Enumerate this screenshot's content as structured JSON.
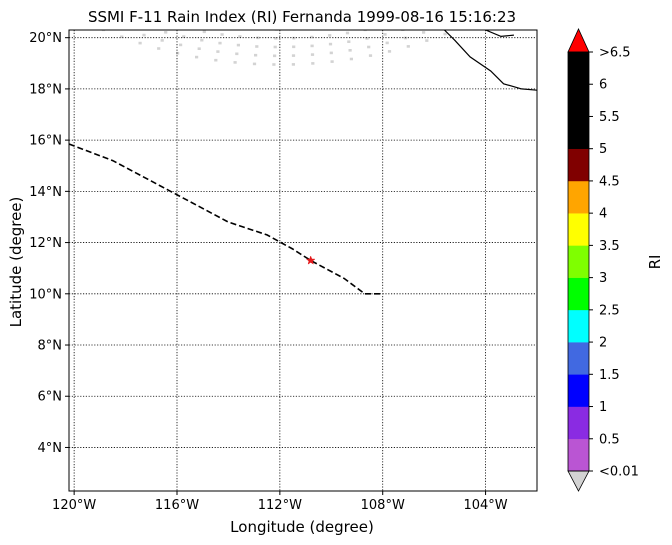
{
  "title": "SSMI F-11 Rain Index (RI) Fernanda 1999-08-16 15:16:23",
  "axes": {
    "xlabel": "Longitude (degree)",
    "ylabel": "Latitude (degree)",
    "x_ticks": [
      {
        "value": -120,
        "label": "120°W"
      },
      {
        "value": -116,
        "label": "116°W"
      },
      {
        "value": -112,
        "label": "112°W"
      },
      {
        "value": -108,
        "label": "108°W"
      },
      {
        "value": -104,
        "label": "104°W"
      }
    ],
    "y_ticks": [
      {
        "value": 4,
        "label": "4°N"
      },
      {
        "value": 6,
        "label": "6°N"
      },
      {
        "value": 8,
        "label": "8°N"
      },
      {
        "value": 10,
        "label": "10°N"
      },
      {
        "value": 12,
        "label": "12°N"
      },
      {
        "value": 14,
        "label": "14°N"
      },
      {
        "value": 16,
        "label": "16°N"
      },
      {
        "value": 18,
        "label": "18°N"
      },
      {
        "value": 20,
        "label": "20°N"
      }
    ],
    "xlim": [
      -120.2,
      -102
    ],
    "ylim": [
      2.3,
      20.3
    ]
  },
  "map": {
    "track": [
      [
        -120.2,
        15.85
      ],
      [
        -118.5,
        15.2
      ],
      [
        -117,
        14.4
      ],
      [
        -115.5,
        13.6
      ],
      [
        -114,
        12.8
      ],
      [
        -112.5,
        12.3
      ],
      [
        -111.5,
        11.75
      ],
      [
        -110.8,
        11.3
      ],
      [
        -109.5,
        10.6
      ],
      [
        -108.7,
        10.0
      ],
      [
        -108.0,
        10.0
      ]
    ],
    "storm_position": [
      -110.8,
      11.3
    ],
    "storm_color": "#e41a1c",
    "track_color": "#000000",
    "swath_color": "#d3d3d3",
    "coastline": [
      [
        -102,
        17.95
      ],
      [
        -102.6,
        18.0
      ],
      [
        -103.3,
        18.2
      ],
      [
        -103.8,
        18.7
      ],
      [
        -104.6,
        19.25
      ],
      [
        -105.2,
        19.9
      ],
      [
        -105.6,
        20.3
      ]
    ],
    "coastline_island": [
      [
        -104.0,
        20.3
      ],
      [
        -103.4,
        20.05
      ],
      [
        -102.9,
        20.1
      ]
    ],
    "grid": true
  },
  "colorbar": {
    "label": "RI",
    "tick_labels": [
      "<0.01",
      "0.5",
      "1",
      "1.5",
      "2",
      "2.5",
      "3",
      "3.5",
      "4",
      "4.5",
      "5",
      "5.5",
      "6",
      ">6.5"
    ],
    "bins": [
      {
        "range": "<0.01-0.5",
        "color": "#ba55d3"
      },
      {
        "range": "0.5-1",
        "color": "#8a2be2"
      },
      {
        "range": "1-1.5",
        "color": "#0000ff"
      },
      {
        "range": "1.5-2",
        "color": "#4169e1"
      },
      {
        "range": "2-2.5",
        "color": "#00ffff"
      },
      {
        "range": "2.5-3",
        "color": "#00ff00"
      },
      {
        "range": "3-3.5",
        "color": "#7fff00"
      },
      {
        "range": "3.5-4",
        "color": "#ffff00"
      },
      {
        "range": "4-4.5",
        "color": "#ffa500"
      },
      {
        "range": "4.5-5",
        "color": "#800000"
      },
      {
        "range": "5-5.5",
        "color": "#000000"
      },
      {
        "range": "5.5-6",
        "color": "#000000"
      },
      {
        "range": "6-6.5",
        "color": "#000000"
      }
    ],
    "under_color": "#d3d3d3",
    "over_color": "#ff0000"
  }
}
